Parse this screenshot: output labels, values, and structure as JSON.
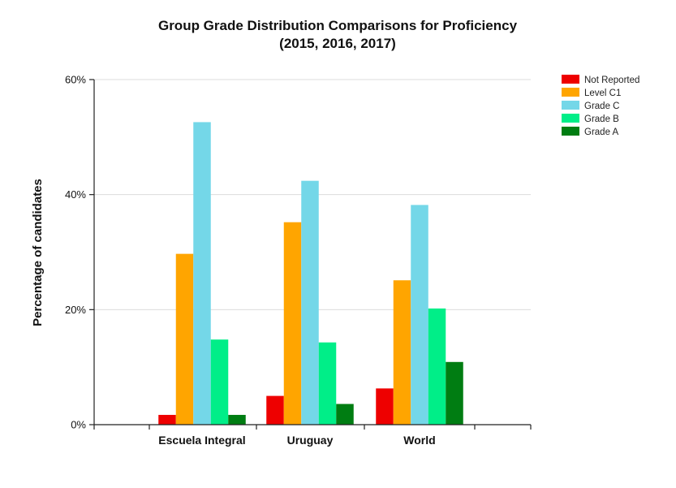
{
  "chart_data": {
    "type": "bar",
    "title": "Group Grade Distribution Comparisons for Proficiency",
    "subtitle": "(2015, 2016, 2017)",
    "xlabel": "",
    "ylabel": "Percentage of candidates",
    "ylim": [
      0,
      60
    ],
    "yticks": [
      0,
      20,
      40,
      60
    ],
    "ytick_labels": [
      "0%",
      "20%",
      "40%",
      "60%"
    ],
    "grid": true,
    "legend_position": "top-right",
    "categories": [
      "Escuela Integral",
      "Uruguay",
      "World"
    ],
    "series": [
      {
        "name": "Not Reported",
        "color": "#ee0000",
        "values": [
          1.7,
          5.0,
          6.3
        ]
      },
      {
        "name": "Level C1",
        "color": "#ffa500",
        "values": [
          29.7,
          35.2,
          25.1
        ]
      },
      {
        "name": "Grade C",
        "color": "#74d7e8",
        "values": [
          52.6,
          42.4,
          38.2
        ]
      },
      {
        "name": "Grade B",
        "color": "#00ee88",
        "values": [
          14.8,
          14.3,
          20.2
        ]
      },
      {
        "name": "Grade A",
        "color": "#007d12",
        "values": [
          1.7,
          3.6,
          10.9
        ]
      }
    ]
  }
}
